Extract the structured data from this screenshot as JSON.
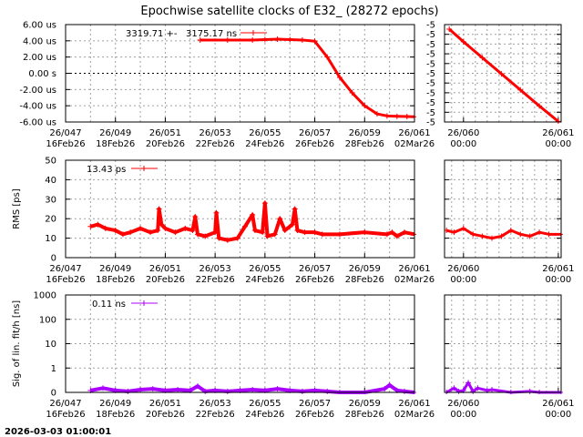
{
  "title": "Epochwise satellite clocks of E32_ (28272 epochs)",
  "timestamp": "2026-03-03 01:00:01",
  "colors": {
    "clock": "#ff0000",
    "rms": "#ff0000",
    "sig": "#aa00ff",
    "grid": "#a0a0a0"
  },
  "x_ticks_main": [
    {
      "day": 47,
      "l1": "26/047",
      "l2": "16Feb26"
    },
    {
      "day": 49,
      "l1": "26/049",
      "l2": "18Feb26"
    },
    {
      "day": 51,
      "l1": "26/051",
      "l2": "20Feb26"
    },
    {
      "day": 53,
      "l1": "26/053",
      "l2": "22Feb26"
    },
    {
      "day": 55,
      "l1": "26/055",
      "l2": "24Feb26"
    },
    {
      "day": 57,
      "l1": "26/057",
      "l2": "26Feb26"
    },
    {
      "day": 59,
      "l1": "26/059",
      "l2": "28Feb26"
    },
    {
      "day": 61,
      "l1": "26/061",
      "l2": "02Mar26"
    }
  ],
  "x_ticks_zoom": [
    {
      "day": 60,
      "l1": "26/060",
      "l2": "00:00"
    },
    {
      "day": 61,
      "l1": "26/061",
      "l2": "00:00"
    }
  ],
  "chart_data": [
    {
      "type": "line",
      "name": "clock",
      "ylabel": "",
      "xlim": [
        47,
        61
      ],
      "ylim": [
        -6,
        6
      ],
      "y_ticks": [
        {
          "v": 6,
          "label": "6.00 us"
        },
        {
          "v": 4,
          "label": "4.00 us"
        },
        {
          "v": 2,
          "label": "2.00 us"
        },
        {
          "v": 0,
          "label": "0.00  s"
        },
        {
          "v": -2,
          "label": "-2.00 us"
        },
        {
          "v": -4,
          "label": "-4.00 us"
        },
        {
          "v": -6,
          "label": "-6.00 us"
        }
      ],
      "legend": {
        "mean": "3319.71 +-",
        "sigma": "3175.17 ns",
        "position": "top-center"
      },
      "x": [
        52.4,
        53.5,
        54.5,
        55.0,
        55.5,
        56.0,
        56.5,
        57.0,
        57.5,
        58.0,
        58.5,
        59.0,
        59.5,
        59.9,
        60.3,
        60.7,
        61.0
      ],
      "y": [
        4.1,
        4.1,
        4.1,
        4.15,
        4.2,
        4.15,
        4.1,
        3.95,
        2.0,
        -0.5,
        -2.4,
        -4.0,
        -5.0,
        -5.25,
        -5.3,
        -5.33,
        -5.36
      ]
    },
    {
      "type": "line",
      "name": "clock-zoom",
      "xlim": [
        59.8,
        61.03
      ],
      "ylim": [
        -5.365,
        -5.195
      ],
      "y_ticks": [
        {
          "v": -5.195,
          "label": "-5"
        },
        {
          "v": -5.212,
          "label": "-5"
        },
        {
          "v": -5.229,
          "label": "-5"
        },
        {
          "v": -5.246,
          "label": "-5"
        },
        {
          "v": -5.263,
          "label": "-5"
        },
        {
          "v": -5.28,
          "label": "-5"
        },
        {
          "v": -5.297,
          "label": "-5"
        },
        {
          "v": -5.314,
          "label": "-5"
        },
        {
          "v": -5.331,
          "label": "-5"
        },
        {
          "v": -5.348,
          "label": "-5"
        },
        {
          "v": -5.365,
          "label": "-5"
        }
      ],
      "x": [
        59.85,
        60.0,
        60.2,
        60.4,
        60.6,
        60.8,
        61.0
      ],
      "y": [
        -5.203,
        -5.225,
        -5.253,
        -5.281,
        -5.309,
        -5.337,
        -5.364
      ]
    },
    {
      "type": "line",
      "name": "rms",
      "ylabel": "RMS [ps]",
      "xlim": [
        47,
        61
      ],
      "ylim": [
        0,
        50
      ],
      "y_ticks": [
        {
          "v": 50,
          "label": "50"
        },
        {
          "v": 40,
          "label": "40"
        },
        {
          "v": 30,
          "label": "30"
        },
        {
          "v": 20,
          "label": "20"
        },
        {
          "v": 10,
          "label": "10"
        },
        {
          "v": 0,
          "label": "0"
        }
      ],
      "legend": {
        "value": "13.43 ps",
        "position": "top-left"
      },
      "x": [
        48.0,
        48.3,
        48.6,
        49.0,
        49.3,
        49.6,
        50.0,
        50.4,
        50.7,
        50.75,
        50.85,
        51.0,
        51.4,
        51.8,
        52.1,
        52.2,
        52.3,
        52.6,
        53.0,
        53.05,
        53.15,
        53.5,
        53.9,
        54.2,
        54.5,
        54.6,
        54.9,
        55.0,
        55.1,
        55.4,
        55.6,
        55.8,
        56.1,
        56.2,
        56.3,
        56.6,
        57.0,
        57.3,
        58.0,
        59.0,
        59.9,
        60.1,
        60.3,
        60.6,
        61.0
      ],
      "y": [
        16,
        17,
        15,
        14,
        12,
        13,
        15,
        13,
        14,
        25,
        17,
        15,
        13,
        15,
        14,
        21,
        12,
        11,
        13,
        23,
        10,
        9,
        10,
        16,
        22,
        14,
        13,
        28,
        11,
        12,
        20,
        14,
        17,
        25,
        14,
        13,
        13,
        12,
        12,
        13,
        12,
        13,
        11,
        13,
        12
      ]
    },
    {
      "type": "line",
      "name": "rms-zoom",
      "xlim": [
        59.8,
        61.03
      ],
      "ylim": [
        0,
        50
      ],
      "x": [
        59.82,
        59.9,
        60.0,
        60.1,
        60.2,
        60.3,
        60.4,
        60.5,
        60.6,
        60.7,
        60.8,
        60.9,
        61.03
      ],
      "y": [
        14,
        13,
        15,
        12,
        11,
        10,
        11,
        14,
        12,
        11,
        13,
        12,
        12
      ]
    },
    {
      "type": "line",
      "name": "sig",
      "ylabel": "Sig. of lin. fit/h [ns]",
      "xlim": [
        47,
        61
      ],
      "ylim": [
        0,
        1000
      ],
      "yscale": "log",
      "y_ticks": [
        {
          "v": 1000,
          "label": "1000"
        },
        {
          "v": 100,
          "label": "100"
        },
        {
          "v": 10,
          "label": "10"
        },
        {
          "v": 1,
          "label": "1"
        },
        {
          "v": 0.1,
          "label": "0"
        }
      ],
      "legend": {
        "value": "0.11 ns",
        "position": "top-left"
      },
      "x": [
        48.0,
        48.5,
        49.0,
        49.5,
        50.0,
        50.5,
        51.0,
        51.5,
        52.0,
        52.3,
        52.6,
        53.0,
        53.5,
        54.0,
        54.5,
        55.0,
        55.5,
        56.0,
        56.5,
        57.0,
        57.5,
        58.0,
        59.0,
        59.8,
        60.0,
        60.3,
        60.6,
        61.0
      ],
      "y": [
        0.12,
        0.15,
        0.12,
        0.11,
        0.13,
        0.14,
        0.12,
        0.13,
        0.12,
        0.18,
        0.11,
        0.12,
        0.11,
        0.12,
        0.13,
        0.12,
        0.14,
        0.12,
        0.11,
        0.12,
        0.11,
        0.1,
        0.1,
        0.14,
        0.2,
        0.12,
        0.11,
        0.1
      ]
    },
    {
      "type": "line",
      "name": "sig-zoom",
      "xlim": [
        59.8,
        61.03
      ],
      "ylim": [
        0,
        1000
      ],
      "yscale": "log",
      "x": [
        59.82,
        59.9,
        59.95,
        60.0,
        60.05,
        60.1,
        60.15,
        60.25,
        60.3,
        60.5,
        60.7,
        60.8,
        61.03
      ],
      "y": [
        0.1,
        0.15,
        0.11,
        0.12,
        0.25,
        0.11,
        0.15,
        0.12,
        0.13,
        0.1,
        0.11,
        0.1,
        0.1
      ]
    }
  ]
}
